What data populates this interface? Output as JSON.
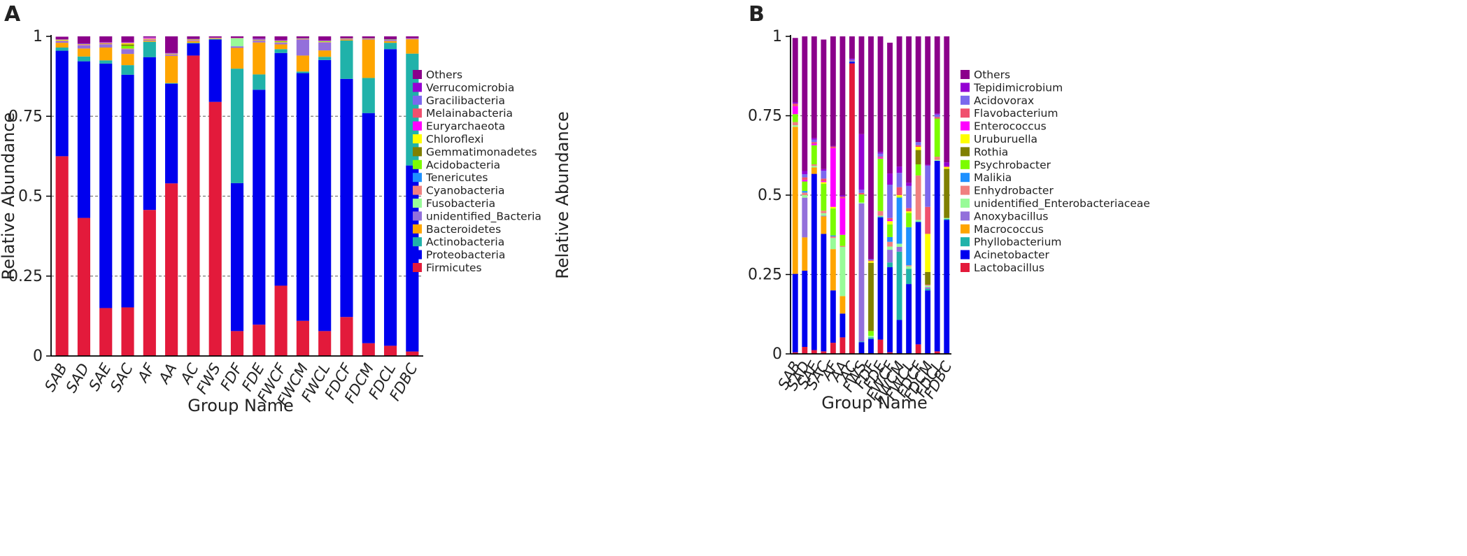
{
  "chart_data": [
    {
      "type": "stacked-bar",
      "panel_label": "A",
      "xlabel": "Group Name",
      "ylabel": "Relative Abundance",
      "ylim": [
        0,
        1
      ],
      "yticks": [
        "0",
        "0.25",
        "0.5",
        "0.75",
        "1"
      ],
      "grid": "dashed-horizontal",
      "legend_position": "right",
      "categories": [
        "SAB",
        "SAD",
        "SAE",
        "SAC",
        "AF",
        "AA",
        "AC",
        "FWS",
        "FDF",
        "FDE",
        "FWCF",
        "FWCM",
        "FWCL",
        "FDCF",
        "FDCM",
        "FDCL",
        "FDBC"
      ],
      "series": [
        {
          "name": "Firmicutes",
          "color": "#e31a3b",
          "values": [
            0.625,
            0.432,
            0.15,
            0.152,
            0.457,
            0.54,
            0.94,
            0.795,
            0.078,
            0.098,
            0.22,
            0.11,
            0.078,
            0.122,
            0.04,
            0.032,
            0.014
          ]
        },
        {
          "name": "Proteobacteria",
          "color": "#0000ee",
          "values": [
            0.33,
            0.49,
            0.765,
            0.728,
            0.478,
            0.312,
            0.038,
            0.195,
            0.463,
            0.735,
            0.728,
            0.775,
            0.848,
            0.745,
            0.72,
            0.928,
            0.582
          ]
        },
        {
          "name": "Actinobacteria",
          "color": "#20b2aa",
          "values": [
            0.01,
            0.015,
            0.01,
            0.03,
            0.048,
            0.002,
            0.002,
            0.002,
            0.358,
            0.048,
            0.012,
            0.005,
            0.01,
            0.12,
            0.11,
            0.02,
            0.35
          ]
        },
        {
          "name": "Bacteroidetes",
          "color": "#ffa500",
          "values": [
            0.015,
            0.025,
            0.04,
            0.035,
            0.003,
            0.085,
            0.005,
            0.002,
            0.065,
            0.1,
            0.015,
            0.05,
            0.02,
            0.003,
            0.12,
            0.005,
            0.045
          ]
        },
        {
          "name": "unidentified_Bacteria",
          "color": "#9370db",
          "values": [
            0.005,
            0.01,
            0.01,
            0.015,
            0.002,
            0.003,
            0.002,
            0.001,
            0.005,
            0.005,
            0.005,
            0.05,
            0.025,
            0.002,
            0.002,
            0.003,
            0.002
          ]
        },
        {
          "name": "Fusobacteria",
          "color": "#98fb98",
          "values": [
            0.0,
            0.0,
            0.0,
            0.0,
            0.0,
            0.0,
            0.0,
            0.0,
            0.025,
            0.0,
            0.0,
            0.0,
            0.0,
            0.0,
            0.0,
            0.0,
            0.0
          ]
        },
        {
          "name": "Cyanobacteria",
          "color": "#f08080",
          "values": [
            0.002,
            0.002,
            0.002,
            0.002,
            0.002,
            0.002,
            0.002,
            0.001,
            0.001,
            0.002,
            0.002,
            0.002,
            0.002,
            0.001,
            0.001,
            0.001,
            0.001
          ]
        },
        {
          "name": "Tenericutes",
          "color": "#1e90ff",
          "values": [
            0.0,
            0.0,
            0.0,
            0.0,
            0.0,
            0.0,
            0.0,
            0.0,
            0.0,
            0.0,
            0.0,
            0.0,
            0.0,
            0.0,
            0.0,
            0.0,
            0.0
          ]
        },
        {
          "name": "Acidobacteria",
          "color": "#7cfc00",
          "values": [
            0.001,
            0.001,
            0.001,
            0.008,
            0.001,
            0.001,
            0.001,
            0.0,
            0.0,
            0.001,
            0.003,
            0.001,
            0.002,
            0.001,
            0.001,
            0.001,
            0.0
          ]
        },
        {
          "name": "Gemmatimonadetes",
          "color": "#808000",
          "values": [
            0.0,
            0.0,
            0.0,
            0.005,
            0.0,
            0.0,
            0.0,
            0.0,
            0.0,
            0.0,
            0.0,
            0.0,
            0.0,
            0.0,
            0.0,
            0.0,
            0.0
          ]
        },
        {
          "name": "Chloroflexi",
          "color": "#ffff00",
          "values": [
            0.001,
            0.0,
            0.0,
            0.003,
            0.001,
            0.0,
            0.0,
            0.0,
            0.0,
            0.0,
            0.0,
            0.0,
            0.0,
            0.0,
            0.0,
            0.0,
            0.0
          ]
        },
        {
          "name": "Euryarchaeota",
          "color": "#ff00ff",
          "values": [
            0.0,
            0.0,
            0.0,
            0.0,
            0.002,
            0.0,
            0.0,
            0.0,
            0.0,
            0.0,
            0.0,
            0.0,
            0.0,
            0.0,
            0.0,
            0.0,
            0.0
          ]
        },
        {
          "name": "Melainabacteria",
          "color": "#f0506e",
          "values": [
            0.001,
            0.001,
            0.002,
            0.002,
            0.001,
            0.001,
            0.001,
            0.0,
            0.0,
            0.001,
            0.002,
            0.0,
            0.001,
            0.0,
            0.0,
            0.0,
            0.0
          ]
        },
        {
          "name": "Gracilibacteria",
          "color": "#7b68ee",
          "values": [
            0.001,
            0.001,
            0.001,
            0.001,
            0.001,
            0.001,
            0.001,
            0.0,
            0.0,
            0.002,
            0.001,
            0.001,
            0.001,
            0.0,
            0.0,
            0.001,
            0.0
          ]
        },
        {
          "name": "Verrucomicrobia",
          "color": "#9400d3",
          "values": [
            0.0,
            0.001,
            0.001,
            0.001,
            0.001,
            0.001,
            0.0,
            0.0,
            0.0,
            0.001,
            0.001,
            0.0,
            0.001,
            0.0,
            0.0,
            0.0,
            0.0
          ]
        },
        {
          "name": "Others",
          "color": "#8b008b",
          "values": [
            0.008,
            0.022,
            0.018,
            0.018,
            0.003,
            0.052,
            0.008,
            0.004,
            0.005,
            0.007,
            0.011,
            0.006,
            0.012,
            0.006,
            0.006,
            0.009,
            0.006
          ]
        }
      ]
    },
    {
      "type": "stacked-bar",
      "panel_label": "B",
      "xlabel": "Group Name",
      "ylabel": "Relative Abundance",
      "ylim": [
        0,
        1
      ],
      "yticks": [
        "0",
        "0.25",
        "0.5",
        "0.75",
        "1"
      ],
      "grid": "dashed-horizontal",
      "legend_position": "right",
      "categories": [
        "SAB",
        "SAD",
        "SAE",
        "SAC",
        "AF",
        "AA",
        "AC",
        "FWS",
        "FDF",
        "FDE",
        "FWCF",
        "FWCM",
        "FWCL",
        "FDCF",
        "FDCM",
        "FDCL",
        "FDBC"
      ],
      "series": [
        {
          "name": "Lactobacillus",
          "color": "#e31a3b",
          "values": [
            0.005,
            0.022,
            0.012,
            0.008,
            0.035,
            0.052,
            0.915,
            0.002,
            0.002,
            0.045,
            0.005,
            0.002,
            0.002,
            0.03,
            0.002,
            0.008,
            0.002
          ]
        },
        {
          "name": "Acinetobacter",
          "color": "#0000ee",
          "values": [
            0.247,
            0.24,
            0.555,
            0.37,
            0.165,
            0.075,
            0.005,
            0.035,
            0.045,
            0.385,
            0.268,
            0.105,
            0.218,
            0.385,
            0.198,
            0.6,
            0.42
          ]
        },
        {
          "name": "Phyllobacterium",
          "color": "#20b2aa",
          "values": [
            0.0,
            0.0,
            0.0,
            0.0,
            0.0,
            0.0,
            0.0,
            0.002,
            0.005,
            0.003,
            0.015,
            0.215,
            0.048,
            0.002,
            0.005,
            0.0,
            0.003
          ]
        },
        {
          "name": "Macrococcus",
          "color": "#ffa500",
          "values": [
            0.463,
            0.105,
            0.02,
            0.055,
            0.13,
            0.055,
            0.0,
            0.0,
            0.0,
            0.0,
            0.0,
            0.0,
            0.0,
            0.0,
            0.0,
            0.0,
            0.0
          ]
        },
        {
          "name": "Anoxybacillus",
          "color": "#9370db",
          "values": [
            0.0,
            0.125,
            0.0,
            0.002,
            0.0,
            0.0,
            0.0,
            0.435,
            0.0,
            0.0,
            0.04,
            0.015,
            0.0,
            0.0,
            0.005,
            0.0,
            0.0
          ]
        },
        {
          "name": "unidentified_Enterobacteriaceae",
          "color": "#98fb98",
          "values": [
            0.005,
            0.008,
            0.005,
            0.008,
            0.035,
            0.155,
            0.0,
            0.003,
            0.005,
            0.002,
            0.01,
            0.01,
            0.008,
            0.005,
            0.005,
            0.003,
            0.003
          ]
        },
        {
          "name": "Enhydrobacter",
          "color": "#f08080",
          "values": [
            0.01,
            0.008,
            0.005,
            0.008,
            0.005,
            0.003,
            0.0,
            0.0,
            0.0,
            0.015,
            0.015,
            0.0,
            0.003,
            0.14,
            0.003,
            0.01,
            0.0
          ]
        },
        {
          "name": "Malikia",
          "color": "#1e90ff",
          "values": [
            0.0,
            0.005,
            0.0,
            0.0,
            0.003,
            0.0,
            0.002,
            0.0,
            0.0,
            0.0,
            0.015,
            0.145,
            0.12,
            0.0,
            0.0,
            0.0,
            0.0
          ]
        },
        {
          "name": "Psychrobacter",
          "color": "#7cfc00",
          "values": [
            0.025,
            0.03,
            0.06,
            0.085,
            0.085,
            0.035,
            0.0,
            0.025,
            0.015,
            0.165,
            0.04,
            0.003,
            0.045,
            0.035,
            0.0,
            0.12,
            0.0
          ]
        },
        {
          "name": "Rothia",
          "color": "#808000",
          "values": [
            0.0,
            0.0,
            0.0,
            0.0,
            0.0,
            0.0,
            0.0,
            0.0,
            0.215,
            0.0,
            0.0,
            0.0,
            0.0,
            0.045,
            0.04,
            0.0,
            0.155
          ]
        },
        {
          "name": "Uruburuella",
          "color": "#ffff00",
          "values": [
            0.0,
            0.0,
            0.0,
            0.005,
            0.005,
            0.0,
            0.0,
            0.0,
            0.005,
            0.0,
            0.01,
            0.005,
            0.005,
            0.01,
            0.12,
            0.0,
            0.005
          ]
        },
        {
          "name": "Enterococcus",
          "color": "#ff00ff",
          "values": [
            0.025,
            0.005,
            0.005,
            0.003,
            0.185,
            0.115,
            0.0,
            0.0,
            0.0,
            0.003,
            0.005,
            0.0,
            0.0,
            0.0,
            0.0,
            0.0,
            0.0
          ]
        },
        {
          "name": "Flavobacterium",
          "color": "#f0506e",
          "values": [
            0.008,
            0.008,
            0.005,
            0.008,
            0.005,
            0.005,
            0.002,
            0.005,
            0.003,
            0.003,
            0.005,
            0.025,
            0.01,
            0.005,
            0.085,
            0.005,
            0.003
          ]
        },
        {
          "name": "Acidovorax",
          "color": "#7b68ee",
          "values": [
            0.0,
            0.01,
            0.008,
            0.025,
            0.0,
            0.0,
            0.003,
            0.01,
            0.003,
            0.01,
            0.105,
            0.045,
            0.07,
            0.01,
            0.13,
            0.008,
            0.0
          ]
        },
        {
          "name": "Tepidimicrobium",
          "color": "#9400d3",
          "values": [
            0.005,
            0.01,
            0.005,
            0.005,
            0.002,
            0.005,
            0.003,
            0.175,
            0.0,
            0.005,
            0.035,
            0.02,
            0.01,
            0.0,
            0.003,
            0.003,
            0.012
          ]
        },
        {
          "name": "Others",
          "color": "#8b008b",
          "values": [
            0.202,
            0.424,
            0.32,
            0.408,
            0.345,
            0.5,
            0.07,
            0.308,
            0.702,
            0.364,
            0.412,
            0.41,
            0.461,
            0.333,
            0.404,
            0.243,
            0.397
          ]
        }
      ]
    }
  ]
}
